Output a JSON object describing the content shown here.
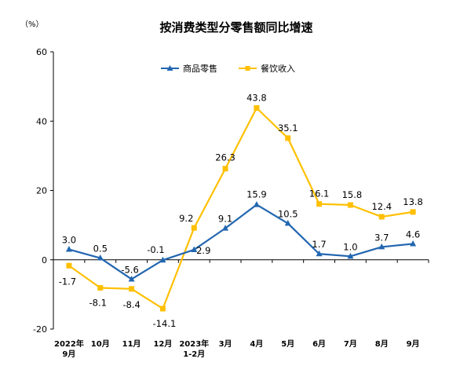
{
  "chart_data": {
    "type": "line",
    "title": "按消费类型分零售额同比增速",
    "unit": "（%）",
    "ylim": [
      -20,
      60
    ],
    "yticks": [
      -20,
      0,
      20,
      40,
      60
    ],
    "categories": [
      "2022年\n9月",
      "10月",
      "11月",
      "12月",
      "2023年\n1-2月",
      "3月",
      "4月",
      "5月",
      "6月",
      "7月",
      "8月",
      "9月"
    ],
    "series": [
      {
        "name": "商品零售",
        "color": "#2266b0",
        "marker": "triangle",
        "values": [
          3.0,
          0.5,
          -5.6,
          -0.1,
          2.9,
          9.1,
          15.9,
          10.5,
          1.7,
          1.0,
          3.7,
          4.6
        ]
      },
      {
        "name": "餐饮收入",
        "color": "#ffc000",
        "marker": "square",
        "values": [
          -1.7,
          -8.1,
          -8.4,
          -14.1,
          9.2,
          26.3,
          43.8,
          35.1,
          16.1,
          15.8,
          12.4,
          13.8
        ]
      }
    ],
    "legend_position": "top-center",
    "grid": false
  }
}
